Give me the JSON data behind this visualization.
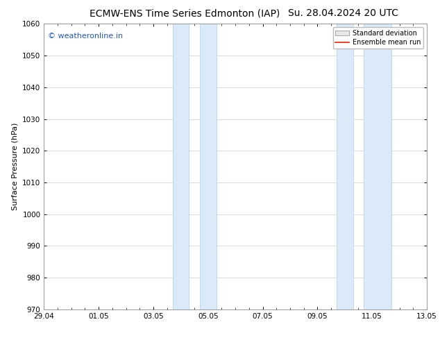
{
  "title_left": "ECMW-ENS Time Series Edmonton (IAP)",
  "title_right": "Su. 28.04.2024 20 UTC",
  "ylabel": "Surface Pressure (hPa)",
  "ylim": [
    970,
    1060
  ],
  "yticks": [
    970,
    980,
    990,
    1000,
    1010,
    1020,
    1030,
    1040,
    1050,
    1060
  ],
  "xtick_labels": [
    "29.04",
    "01.05",
    "03.05",
    "05.05",
    "07.05",
    "09.05",
    "11.05",
    "13.05"
  ],
  "xtick_positions": [
    0,
    2,
    4,
    6,
    8,
    10,
    12,
    14
  ],
  "xlim": [
    0,
    14
  ],
  "shaded_regions": [
    {
      "x_start": 4.7,
      "x_end": 5.3
    },
    {
      "x_start": 5.7,
      "x_end": 6.3
    },
    {
      "x_start": 10.7,
      "x_end": 11.3
    },
    {
      "x_start": 11.7,
      "x_end": 12.7
    }
  ],
  "shaded_color": "#daeaf8",
  "shaded_edge_color": "#b8d4ea",
  "watermark_text": "© weatheronline.in",
  "watermark_color": "#2255cc",
  "watermark_fontsize": 8,
  "legend_std_label": "Standard deviation",
  "legend_mean_label": "Ensemble mean run",
  "legend_std_facecolor": "#e8e8e8",
  "legend_std_edgecolor": "#aaaaaa",
  "legend_mean_color": "#ee2200",
  "bg_color": "#ffffff",
  "grid_color": "#cccccc",
  "title_fontsize": 10,
  "axis_label_fontsize": 8,
  "tick_fontsize": 7.5,
  "legend_fontsize": 7
}
